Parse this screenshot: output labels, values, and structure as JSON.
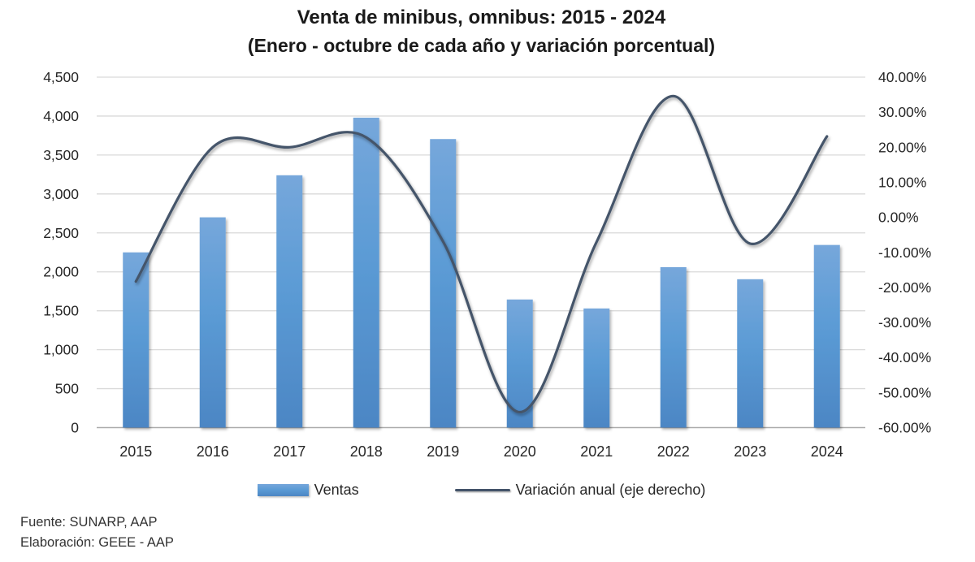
{
  "title": {
    "line1": "Venta de minibus, omnibus: 2015 - 2024",
    "line2": "(Enero - octubre de cada año y variación porcentual)"
  },
  "legend": {
    "bars_label": "Ventas",
    "line_label": "Variación anual (eje derecho)"
  },
  "footer": {
    "source": "Fuente: SUNARP, AAP",
    "elaboration": "Elaboración: GEEE - AAP"
  },
  "colors": {
    "bar_main": "#5B9BD5",
    "bar_light": "#76A7DB",
    "bar_dark": "#4C86C4",
    "line": "#44546A",
    "gridline": "#D9D9D9",
    "axis_line": "#ABABAB",
    "text": "#262626"
  },
  "chart_data": {
    "type": "bar",
    "subtype": "combo-bar-line",
    "title": "Venta de minibus, omnibus: 2015 - 2024",
    "subtitle": "(Enero - octubre de cada año y variación porcentual)",
    "categories": [
      "2015",
      "2016",
      "2017",
      "2018",
      "2019",
      "2020",
      "2021",
      "2022",
      "2023",
      "2024"
    ],
    "series": [
      {
        "name": "Ventas",
        "type": "bar",
        "axis": "left",
        "values": [
          2250,
          2700,
          3240,
          3980,
          3705,
          1645,
          1530,
          2060,
          1905,
          2345
        ]
      },
      {
        "name": "Variación anual (eje derecho)",
        "type": "line",
        "axis": "right",
        "values": [
          -18.3,
          20.0,
          20.0,
          22.8,
          -6.9,
          -55.6,
          -7.0,
          34.6,
          -7.5,
          23.1
        ],
        "unit": "%"
      }
    ],
    "y_left": {
      "min": 0,
      "max": 4500,
      "step": 500,
      "tick_labels": [
        "4,500",
        "4,000",
        "3,500",
        "3,000",
        "2,500",
        "2,000",
        "1,500",
        "1,000",
        "500",
        "0"
      ]
    },
    "y_right": {
      "min": -60,
      "max": 40,
      "step": 10,
      "tick_labels": [
        "40.00%",
        "30.00%",
        "20.00%",
        "10.00%",
        "0.00%",
        "-10.00%",
        "-20.00%",
        "-30.00%",
        "-40.00%",
        "-50.00%",
        "-60.00%"
      ]
    },
    "grid": true,
    "legend_position": "bottom",
    "line_smooth": true
  }
}
